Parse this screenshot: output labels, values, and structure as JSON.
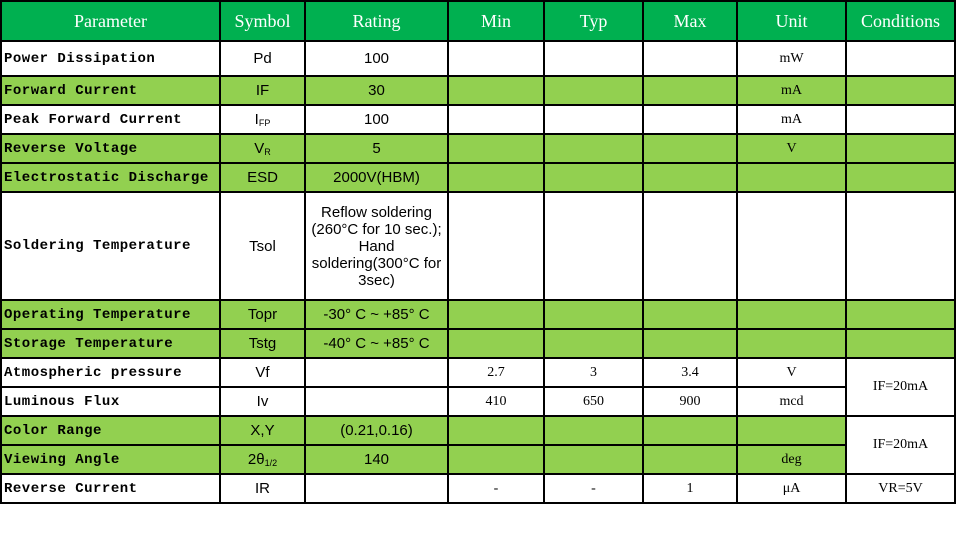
{
  "colors": {
    "header": "#00B050",
    "highlight_row": "#92D050"
  },
  "headers": [
    "Parameter",
    "Symbol",
    "Rating",
    "Min",
    "Typ",
    "Max",
    "Unit",
    "Conditions"
  ],
  "rows": [
    {
      "parameter": "Power Dissipation",
      "symbol": "Pd",
      "symbol_sub": "",
      "rating": "100",
      "min": "",
      "typ": "",
      "max": "",
      "unit": "mW",
      "conditions": "",
      "green": false
    },
    {
      "parameter": "Forward Current",
      "symbol": "IF",
      "symbol_sub": "",
      "rating": "30",
      "min": "",
      "typ": "",
      "max": "",
      "unit": "mA",
      "conditions": "",
      "green": true
    },
    {
      "parameter": "Peak  Forward Current",
      "symbol": "I",
      "symbol_sub": "FP",
      "rating": "100",
      "min": "",
      "typ": "",
      "max": "",
      "unit": "mA",
      "conditions": "",
      "green": false
    },
    {
      "parameter": "Reverse Voltage",
      "symbol": "V",
      "symbol_sub": "R",
      "rating": "5",
      "min": "",
      "typ": "",
      "max": "",
      "unit": "V",
      "conditions": "",
      "green": true
    },
    {
      "parameter": "Electrostatic Discharge",
      "symbol": "ESD",
      "symbol_sub": "",
      "rating": "2000V(HBM)",
      "min": "",
      "typ": "",
      "max": "",
      "unit": "",
      "conditions": "",
      "green": true
    },
    {
      "parameter": "Soldering Temperature",
      "symbol": "Tsol",
      "symbol_sub": "",
      "rating": "Reflow soldering (260°C for 10 sec.); Hand soldering(300°C for 3sec)",
      "min": "",
      "typ": "",
      "max": "",
      "unit": "",
      "conditions": "",
      "green": false
    },
    {
      "parameter": "Operating Temperature",
      "symbol": "Topr",
      "symbol_sub": "",
      "rating": "-30° C ~ +85° C",
      "min": "",
      "typ": "",
      "max": "",
      "unit": "",
      "conditions": "",
      "green": true
    },
    {
      "parameter": "Storage Temperature",
      "symbol": "Tstg",
      "symbol_sub": "",
      "rating": "-40° C ~ +85° C",
      "min": "",
      "typ": "",
      "max": "",
      "unit": "",
      "conditions": "",
      "green": true
    },
    {
      "parameter": "Atmospheric pressure",
      "symbol": "Vf",
      "symbol_sub": "",
      "rating": "",
      "min": "2.7",
      "typ": "3",
      "max": "3.4",
      "unit": "V",
      "conditions": "IF=20mA",
      "span": 2,
      "green": false
    },
    {
      "parameter": "Luminous Flux",
      "symbol": "Iv",
      "symbol_sub": "",
      "rating": "",
      "min": "410",
      "typ": "650",
      "max": "900",
      "unit": "mcd",
      "skip_cond": true,
      "green": false
    },
    {
      "parameter": "Color Range",
      "symbol": "X,Y",
      "symbol_sub": "",
      "rating": "(0.21,0.16)",
      "min": "",
      "typ": "",
      "max": "",
      "unit": "",
      "conditions": "IF=20mA",
      "span": 2,
      "green": true
    },
    {
      "parameter": "Viewing Angle",
      "symbol": "2θ",
      "symbol_sub": "1/2",
      "rating": "140",
      "min": "",
      "typ": "",
      "max": "",
      "unit": "deg",
      "skip_cond": true,
      "green": true
    },
    {
      "parameter": "Reverse Current",
      "symbol": "IR",
      "symbol_sub": "",
      "rating": "",
      "min": "-",
      "typ": "-",
      "max": "1",
      "unit": "μA",
      "conditions": "VR=5V",
      "green": false
    }
  ]
}
